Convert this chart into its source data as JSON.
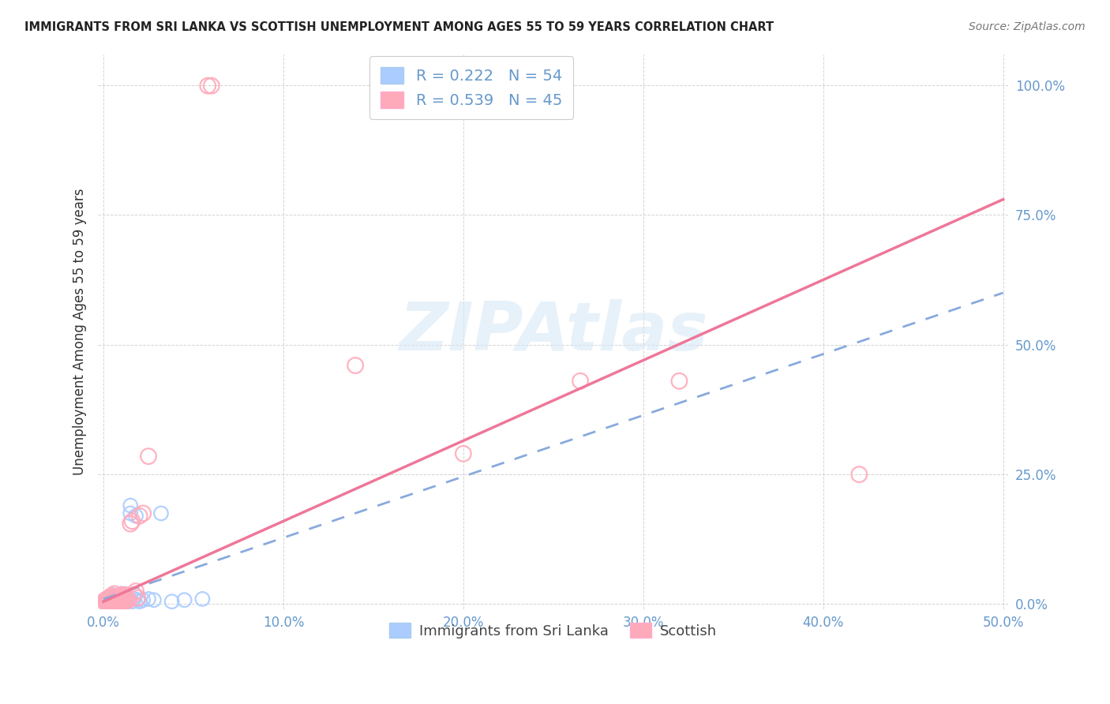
{
  "title": "IMMIGRANTS FROM SRI LANKA VS SCOTTISH UNEMPLOYMENT AMONG AGES 55 TO 59 YEARS CORRELATION CHART",
  "source": "Source: ZipAtlas.com",
  "ylabel": "Unemployment Among Ages 55 to 59 years",
  "xlim": [
    -0.003,
    0.503
  ],
  "ylim": [
    -0.01,
    1.06
  ],
  "xticks": [
    0.0,
    0.1,
    0.2,
    0.3,
    0.4,
    0.5
  ],
  "xticklabels": [
    "0.0%",
    "10.0%",
    "20.0%",
    "30.0%",
    "40.0%",
    "50.0%"
  ],
  "yticks": [
    0.0,
    0.25,
    0.5,
    0.75,
    1.0
  ],
  "yticklabels": [
    "0.0%",
    "25.0%",
    "50.0%",
    "75.0%",
    "100.0%"
  ],
  "blue_R": 0.222,
  "blue_N": 54,
  "pink_R": 0.539,
  "pink_N": 45,
  "blue_scatter_color": "#aaccff",
  "pink_scatter_color": "#ffaabb",
  "blue_line_color": "#88aadd",
  "pink_line_color": "#ee7799",
  "tick_color": "#6699cc",
  "watermark_color": "#d8e8f5",
  "grid_color": "#cccccc",
  "blue_x": [
    0.001,
    0.001,
    0.002,
    0.002,
    0.003,
    0.003,
    0.003,
    0.004,
    0.004,
    0.004,
    0.005,
    0.005,
    0.005,
    0.005,
    0.005,
    0.006,
    0.006,
    0.006,
    0.006,
    0.007,
    0.007,
    0.007,
    0.007,
    0.008,
    0.008,
    0.008,
    0.009,
    0.009,
    0.009,
    0.01,
    0.01,
    0.01,
    0.01,
    0.011,
    0.011,
    0.012,
    0.012,
    0.013,
    0.013,
    0.014,
    0.015,
    0.015,
    0.016,
    0.017,
    0.018,
    0.019,
    0.02,
    0.022,
    0.025,
    0.028,
    0.032,
    0.038,
    0.045,
    0.055
  ],
  "blue_y": [
    0.005,
    0.008,
    0.003,
    0.01,
    0.003,
    0.007,
    0.012,
    0.003,
    0.008,
    0.015,
    0.002,
    0.005,
    0.008,
    0.012,
    0.018,
    0.003,
    0.006,
    0.01,
    0.015,
    0.003,
    0.006,
    0.01,
    0.015,
    0.003,
    0.007,
    0.012,
    0.002,
    0.006,
    0.01,
    0.003,
    0.007,
    0.012,
    0.02,
    0.003,
    0.008,
    0.003,
    0.01,
    0.005,
    0.012,
    0.008,
    0.175,
    0.19,
    0.005,
    0.01,
    0.17,
    0.008,
    0.005,
    0.008,
    0.01,
    0.008,
    0.175,
    0.005,
    0.008,
    0.01
  ],
  "pink_x": [
    0.001,
    0.001,
    0.002,
    0.002,
    0.003,
    0.003,
    0.004,
    0.004,
    0.005,
    0.005,
    0.005,
    0.006,
    0.006,
    0.006,
    0.006,
    0.007,
    0.007,
    0.008,
    0.008,
    0.009,
    0.009,
    0.01,
    0.01,
    0.01,
    0.011,
    0.011,
    0.012,
    0.012,
    0.013,
    0.014,
    0.015,
    0.016,
    0.017,
    0.018,
    0.019,
    0.02,
    0.022,
    0.025,
    0.058,
    0.06,
    0.14,
    0.2,
    0.265,
    0.32,
    0.42
  ],
  "pink_y": [
    0.003,
    0.008,
    0.003,
    0.01,
    0.003,
    0.012,
    0.005,
    0.015,
    0.003,
    0.008,
    0.015,
    0.003,
    0.008,
    0.015,
    0.02,
    0.005,
    0.012,
    0.003,
    0.01,
    0.005,
    0.015,
    0.003,
    0.01,
    0.018,
    0.005,
    0.015,
    0.005,
    0.018,
    0.012,
    0.008,
    0.155,
    0.16,
    0.018,
    0.025,
    0.012,
    0.17,
    0.175,
    0.285,
    0.999,
    0.999,
    0.46,
    0.29,
    0.43,
    0.43,
    0.25
  ]
}
